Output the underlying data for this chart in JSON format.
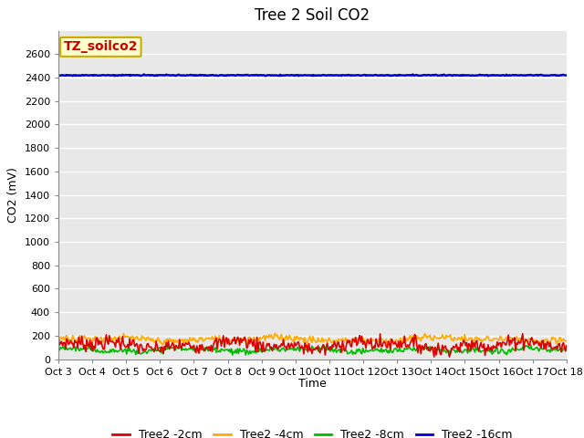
{
  "title": "Tree 2 Soil CO2",
  "xlabel": "Time",
  "ylabel": "CO2 (mV)",
  "ylim": [
    0,
    2800
  ],
  "yticks": [
    0,
    200,
    400,
    600,
    800,
    1000,
    1200,
    1400,
    1600,
    1800,
    2000,
    2200,
    2400,
    2600
  ],
  "x_labels": [
    "Oct 3",
    "Oct 4",
    "Oct 5",
    "Oct 6",
    "Oct 7",
    "Oct 8",
    "Oct 9",
    "Oct 10",
    "Oct 11",
    "Oct 12",
    "Oct 13",
    "Oct 14",
    "Oct 15",
    "Oct 16",
    "Oct 17",
    "Oct 18"
  ],
  "n_points": 500,
  "series": {
    "Tree2 -2cm": {
      "color": "#dd0000",
      "mean": 120,
      "std": 45,
      "amp": 25
    },
    "Tree2 -4cm": {
      "color": "#ffaa00",
      "mean": 175,
      "std": 18,
      "amp": 12
    },
    "Tree2 -8cm": {
      "color": "#00bb00",
      "mean": 78,
      "std": 14,
      "amp": 10
    },
    "Tree2 -16cm": {
      "color": "#0000dd",
      "mean": 2420,
      "std": 2,
      "amp": 0
    }
  },
  "annotation_text": "TZ_soilco2",
  "annotation_bg": "#ffffcc",
  "annotation_border": "#ccaa00",
  "background_color": "#e8e8e8",
  "grid_color": "#ffffff",
  "title_fontsize": 12,
  "axis_fontsize": 9,
  "tick_fontsize": 8,
  "legend_fontsize": 9
}
